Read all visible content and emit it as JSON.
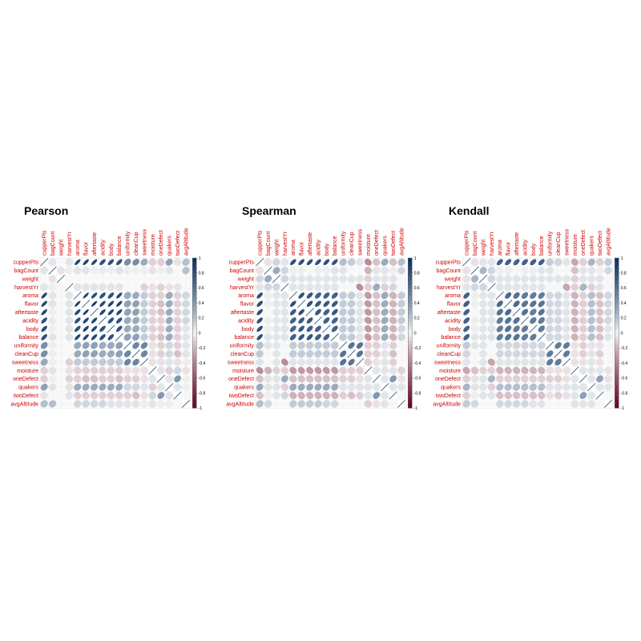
{
  "chart_data": {
    "type": "heatmap",
    "variables": [
      "cupperPts",
      "bagCount",
      "weight",
      "harvestYr",
      "aroma",
      "flavor",
      "aftertaste",
      "acidity",
      "body",
      "balance",
      "uniformity",
      "cleanCup",
      "sweetness",
      "moisture",
      "oneDefect",
      "quakers",
      "twoDefect",
      "avgAltitude"
    ],
    "colorbar_ticks": [
      "1",
      "0.8",
      "0.6",
      "0.4",
      "0.2",
      "0",
      "-0.2",
      "-0.4",
      "-0.6",
      "-0.8",
      "-1"
    ],
    "color_scale": {
      "low": "#67001f",
      "mid": "#f7f7f7",
      "high": "#053061"
    },
    "panels": [
      {
        "title": "Pearson",
        "upper_rows": [
          [
            0.05,
            0,
            0.05,
            0.85,
            0.85,
            0.85,
            0.8,
            0.8,
            0.8,
            0.45,
            0.45,
            0.3,
            -0.1,
            -0.1,
            0.35,
            -0.05,
            0.2
          ],
          [
            -0.05,
            0.02,
            0.05,
            0.05,
            0.02,
            0.03,
            0.02,
            0.05,
            0.02,
            0.02,
            0.02,
            -0.05,
            0.02,
            0.05,
            0,
            0.2
          ],
          [
            0,
            0,
            0,
            0,
            0,
            0,
            0,
            0,
            0,
            0,
            0,
            0,
            0,
            0,
            0
          ],
          [
            0.05,
            0.05,
            0.05,
            0.05,
            0.05,
            0.05,
            0,
            0,
            -0.1,
            -0.05,
            -0.1,
            -0.05,
            0.05,
            0
          ],
          [
            0.9,
            0.85,
            0.8,
            0.8,
            0.85,
            0.3,
            0.3,
            0.15,
            -0.1,
            -0.1,
            0.3,
            -0.1,
            0.1
          ],
          [
            0.9,
            0.85,
            0.85,
            0.85,
            0.35,
            0.35,
            0.15,
            -0.1,
            -0.15,
            0.3,
            -0.1,
            0.1
          ],
          [
            0.85,
            0.85,
            0.85,
            0.35,
            0.35,
            0.15,
            -0.1,
            -0.15,
            0.3,
            -0.1,
            0.1
          ],
          [
            0.8,
            0.8,
            0.3,
            0.3,
            0.15,
            -0.1,
            -0.1,
            0.3,
            -0.1,
            0.1
          ],
          [
            0.8,
            0.3,
            0.3,
            0.15,
            -0.1,
            -0.1,
            0.3,
            -0.1,
            0.05
          ],
          [
            0.35,
            0.35,
            0.15,
            -0.1,
            -0.15,
            0.3,
            -0.1,
            0.05
          ],
          [
            0.5,
            0.5,
            -0.05,
            -0.1,
            0.1,
            -0.1,
            0.05
          ],
          [
            0.5,
            -0.05,
            -0.1,
            0.1,
            -0.15,
            0.05
          ],
          [
            -0.05,
            -0.05,
            0.05,
            -0.05,
            0.02
          ],
          [
            0.05,
            -0.1,
            0.1,
            -0.05
          ],
          [
            0.05,
            0.4,
            -0.02
          ],
          [
            0.05,
            0.02
          ],
          [
            0
          ]
        ]
      },
      {
        "title": "Spearman",
        "upper_rows": [
          [
            -0.05,
            0.1,
            0.05,
            0.8,
            0.8,
            0.8,
            0.8,
            0.8,
            0.8,
            0.2,
            0.15,
            0.05,
            -0.35,
            -0.15,
            0.3,
            -0.15,
            0.2
          ],
          [
            0.3,
            0.1,
            0.02,
            0.02,
            0,
            0.02,
            0.02,
            0.05,
            0.05,
            0,
            0,
            -0.2,
            0.05,
            0.05,
            0.02,
            0.1
          ],
          [
            0.1,
            0.05,
            0.05,
            0.05,
            0.05,
            0.05,
            0.05,
            0.05,
            0.05,
            0.05,
            -0.1,
            0.05,
            0.05,
            0.05,
            0
          ],
          [
            0.05,
            0.05,
            0.05,
            0.05,
            0.05,
            0.05,
            0,
            0,
            -0.35,
            -0.1,
            0.3,
            -0.1,
            0.1,
            0
          ],
          [
            0.8,
            0.75,
            0.7,
            0.7,
            0.7,
            0.15,
            0.15,
            0.05,
            -0.3,
            -0.15,
            0.3,
            -0.2,
            0.15
          ],
          [
            0.8,
            0.75,
            0.75,
            0.75,
            0.15,
            0.15,
            0.05,
            -0.3,
            -0.15,
            0.3,
            -0.2,
            0.15
          ],
          [
            0.75,
            0.7,
            0.75,
            0.15,
            0.15,
            0.05,
            -0.3,
            -0.15,
            0.3,
            -0.2,
            0.15
          ],
          [
            0.7,
            0.7,
            0.15,
            0.15,
            0.05,
            -0.3,
            -0.15,
            0.3,
            -0.2,
            0.15
          ],
          [
            0.7,
            0.15,
            0.15,
            0.05,
            -0.3,
            -0.15,
            0.3,
            -0.2,
            0.1
          ],
          [
            0.15,
            0.15,
            0.05,
            -0.3,
            -0.15,
            0.3,
            -0.2,
            0.1
          ],
          [
            0.6,
            0.6,
            -0.1,
            -0.1,
            0.05,
            -0.1,
            0
          ],
          [
            0.6,
            -0.1,
            -0.1,
            0.05,
            -0.15,
            0
          ],
          [
            -0.1,
            -0.05,
            0.05,
            -0.1,
            0
          ],
          [
            0.05,
            0.05,
            0.05,
            -0.1
          ],
          [
            0.05,
            0.4,
            -0.05
          ],
          [
            0.05,
            0.05
          ],
          [
            0
          ]
        ]
      },
      {
        "title": "Kendall",
        "upper_rows": [
          [
            -0.05,
            0.05,
            0.05,
            0.7,
            0.7,
            0.7,
            0.7,
            0.7,
            0.7,
            0.15,
            0.1,
            0.05,
            -0.25,
            -0.1,
            0.25,
            -0.1,
            0.15
          ],
          [
            0.25,
            0.1,
            0.02,
            0.02,
            0,
            0.02,
            0.02,
            0.05,
            0.05,
            0,
            0,
            -0.15,
            0.05,
            0.05,
            0.02,
            0.1
          ],
          [
            0.1,
            0.05,
            0.05,
            0.05,
            0.05,
            0.05,
            0.05,
            0.05,
            0.05,
            0.05,
            -0.1,
            0.05,
            0.05,
            0.05,
            0
          ],
          [
            0.05,
            0.05,
            0.05,
            0.05,
            0.05,
            0.05,
            0,
            0,
            -0.25,
            -0.1,
            0.25,
            -0.1,
            0.05,
            0
          ],
          [
            0.65,
            0.6,
            0.55,
            0.55,
            0.55,
            0.1,
            0.1,
            0.05,
            -0.2,
            -0.1,
            0.2,
            -0.15,
            0.1
          ],
          [
            0.65,
            0.6,
            0.6,
            0.6,
            0.1,
            0.1,
            0.05,
            -0.2,
            -0.1,
            0.2,
            -0.15,
            0.1
          ],
          [
            0.6,
            0.55,
            0.6,
            0.1,
            0.1,
            0.05,
            -0.2,
            -0.1,
            0.2,
            -0.15,
            0.1
          ],
          [
            0.55,
            0.55,
            0.1,
            0.1,
            0.05,
            -0.2,
            -0.1,
            0.2,
            -0.15,
            0.1
          ],
          [
            0.55,
            0.1,
            0.1,
            0.05,
            -0.2,
            -0.1,
            0.2,
            -0.15,
            0.05
          ],
          [
            0.1,
            0.1,
            0.05,
            -0.2,
            -0.1,
            0.2,
            -0.15,
            0.05
          ],
          [
            0.55,
            0.55,
            -0.05,
            -0.1,
            0.05,
            -0.05,
            0
          ],
          [
            0.55,
            -0.05,
            -0.1,
            0.05,
            -0.1,
            0
          ],
          [
            -0.05,
            -0.05,
            0.05,
            -0.05,
            0
          ],
          [
            0.05,
            0.05,
            0.05,
            -0.05
          ],
          [
            0.05,
            0.35,
            -0.05
          ],
          [
            0.05,
            0.05
          ],
          [
            0
          ]
        ]
      }
    ]
  }
}
